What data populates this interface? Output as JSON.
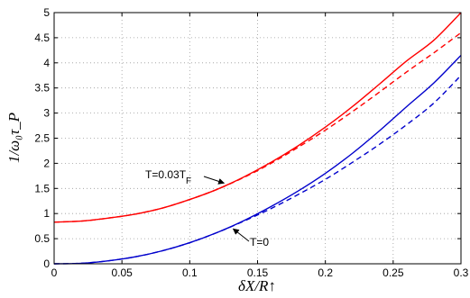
{
  "chart_data": {
    "type": "line",
    "xlabel": "δX/R↑",
    "ylabel": "1/ω₀τ_P",
    "xlim": [
      0,
      0.3
    ],
    "ylim": [
      0,
      5
    ],
    "xticks": [
      0,
      0.05,
      0.1,
      0.15,
      0.2,
      0.25,
      0.3
    ],
    "xtick_labels": [
      "0",
      "0.05",
      "0.1",
      "0.15",
      "0.2",
      "0.25",
      "0.3"
    ],
    "yticks": [
      0,
      0.5,
      1,
      1.5,
      2,
      2.5,
      3,
      3.5,
      4,
      4.5,
      5
    ],
    "ytick_labels": [
      "0",
      "0.5",
      "1",
      "1.5",
      "2",
      "2.5",
      "3",
      "3.5",
      "4",
      "4.5",
      "5"
    ],
    "grid": "dotted",
    "x": [
      0,
      0.02,
      0.04,
      0.06,
      0.08,
      0.1,
      0.12,
      0.14,
      0.16,
      0.18,
      0.2,
      0.22,
      0.24,
      0.26,
      0.28,
      0.3
    ],
    "series": [
      {
        "color": "#ff0000",
        "style": "solid",
        "values": [
          0.83,
          0.85,
          0.91,
          0.99,
          1.11,
          1.28,
          1.48,
          1.73,
          2.02,
          2.35,
          2.72,
          3.13,
          3.58,
          4.04,
          4.45,
          5.0
        ]
      },
      {
        "color": "#ff0000",
        "style": "dashed",
        "values": [
          0.83,
          0.85,
          0.91,
          0.99,
          1.11,
          1.28,
          1.48,
          1.72,
          2.0,
          2.32,
          2.66,
          3.03,
          3.42,
          3.82,
          4.2,
          4.6
        ]
      },
      {
        "color": "#0000cc",
        "style": "solid",
        "values": [
          0.0,
          0.01,
          0.06,
          0.14,
          0.26,
          0.42,
          0.62,
          0.86,
          1.14,
          1.45,
          1.8,
          2.2,
          2.65,
          3.13,
          3.6,
          4.15
        ]
      },
      {
        "color": "#0000cc",
        "style": "dashed",
        "values": [
          0.0,
          0.01,
          0.06,
          0.14,
          0.26,
          0.42,
          0.62,
          0.85,
          1.1,
          1.38,
          1.68,
          2.02,
          2.38,
          2.77,
          3.2,
          3.75
        ]
      }
    ],
    "annotations": [
      {
        "text": "T=0.03T",
        "subscript": "F",
        "color": "#000000",
        "arrow_to": [
          0.128,
          1.57
        ]
      },
      {
        "text": "T=0",
        "color": "#000000",
        "arrow_to": [
          0.13,
          0.75
        ]
      }
    ],
    "legend": "none"
  }
}
